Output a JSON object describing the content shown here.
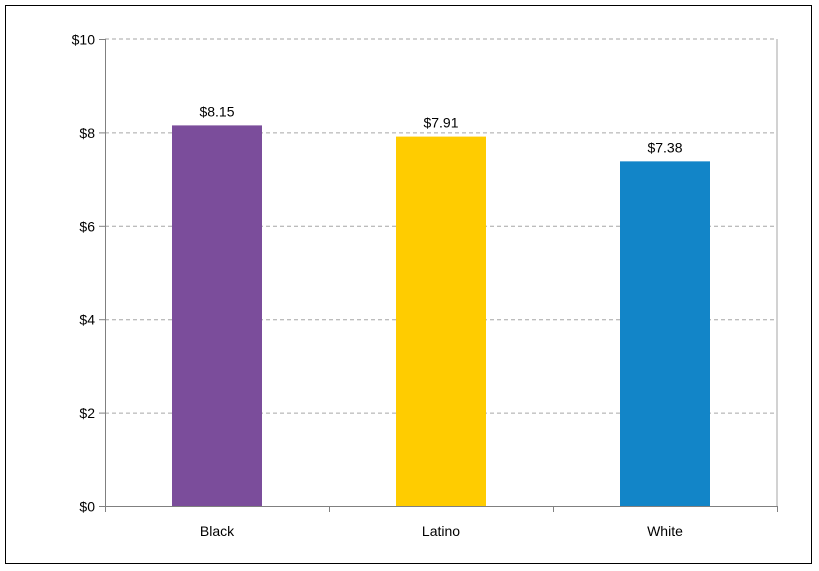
{
  "chart_data": {
    "type": "bar",
    "categories": [
      "Black",
      "Latino",
      "White"
    ],
    "values": [
      8.15,
      7.91,
      7.38
    ],
    "data_labels": [
      "$8.15",
      "$7.91",
      "$7.38"
    ],
    "colors": [
      "#7B4D9B",
      "#FFCC00",
      "#1285C8"
    ],
    "title": "",
    "xlabel": "",
    "ylabel": "",
    "ylim": [
      0,
      10
    ],
    "yticks": [
      0,
      2,
      4,
      6,
      8,
      10
    ],
    "ytick_labels": [
      "$0",
      "$2",
      "$4",
      "$6",
      "$8",
      "$10"
    ],
    "grid": "horizontal-dashed",
    "legend": "none"
  }
}
